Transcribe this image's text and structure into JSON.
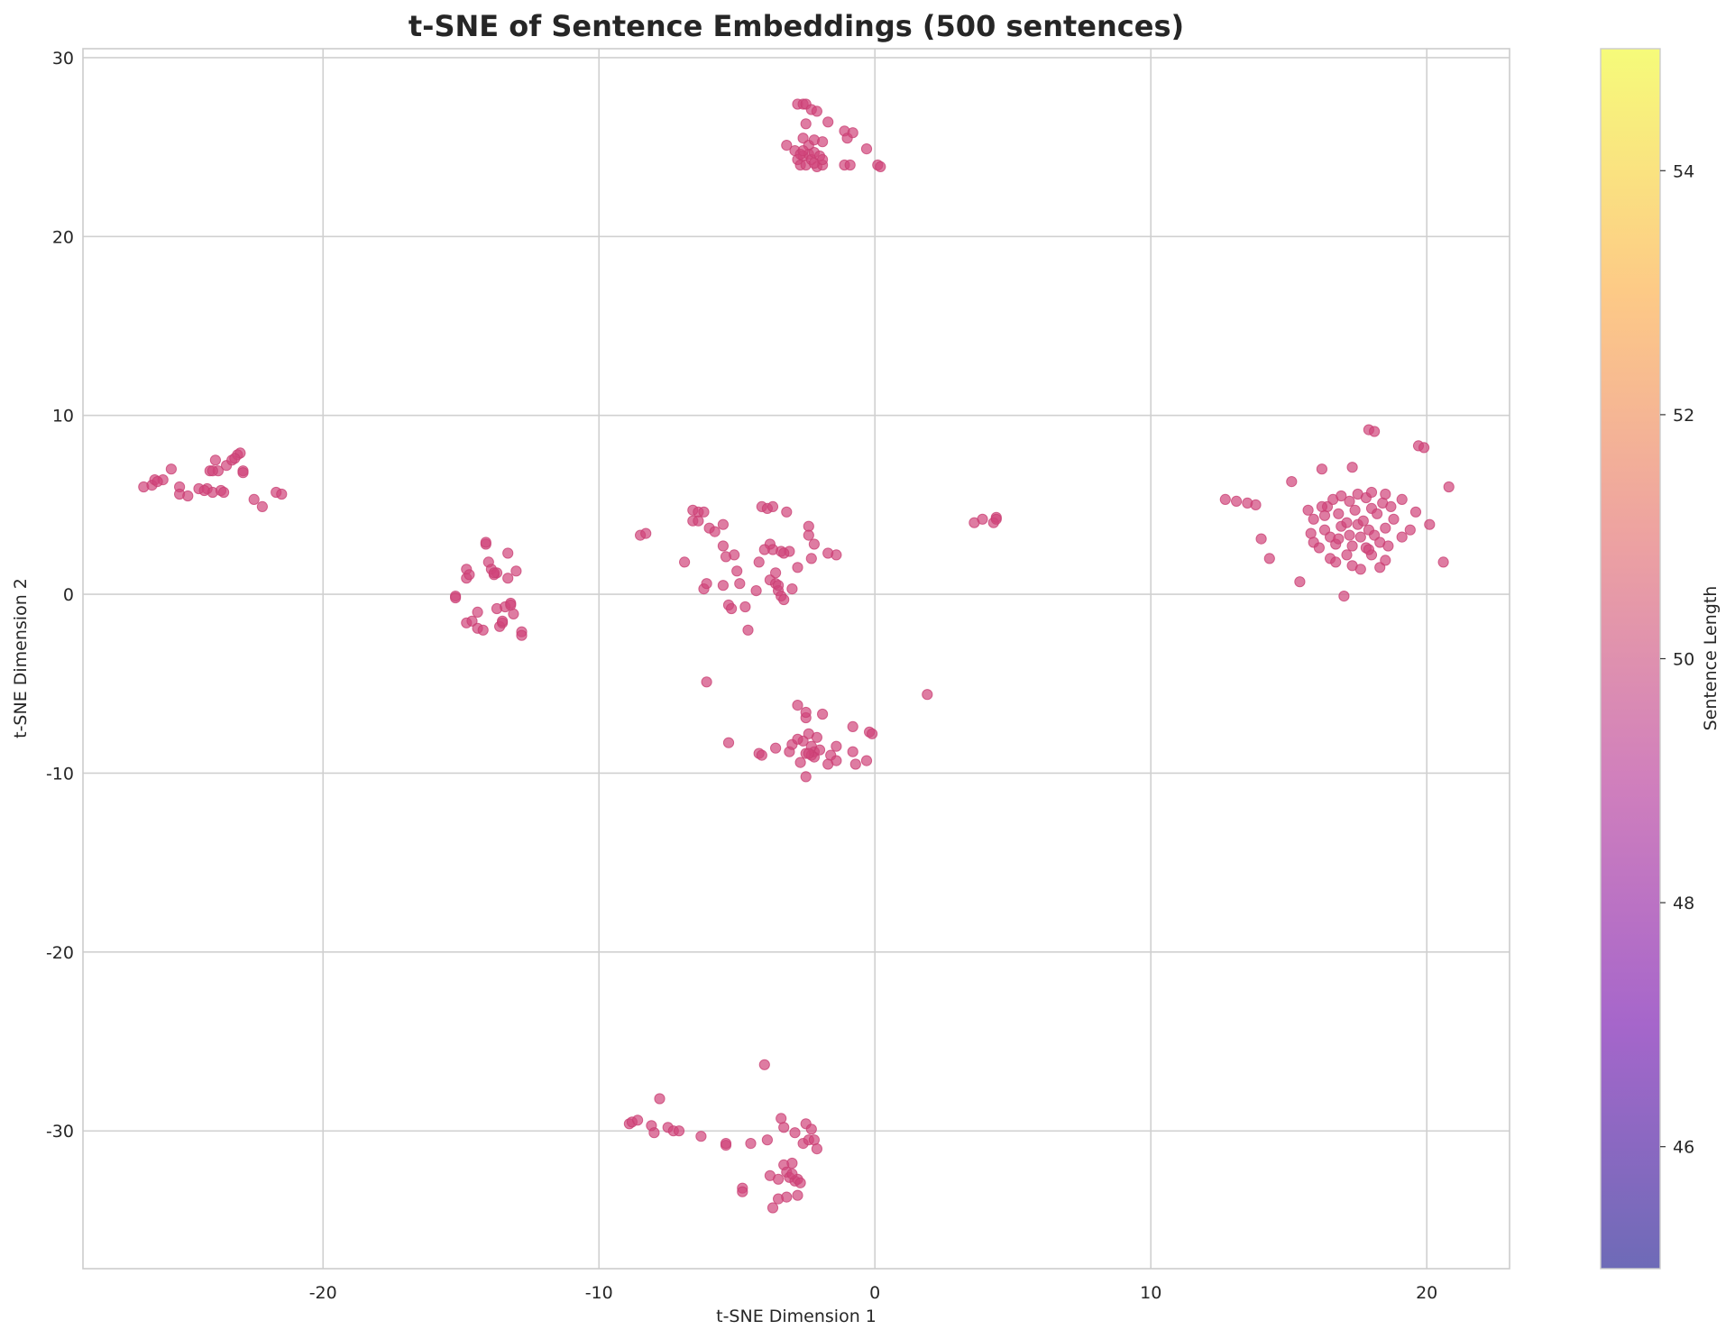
{
  "chart_data": {
    "type": "scatter",
    "title": "t-SNE of Sentence Embeddings (500 sentences)",
    "xlabel": "t-SNE Dimension 1",
    "ylabel": "t-SNE Dimension 2",
    "xlim": [
      -28.7,
      23.0
    ],
    "ylim": [
      -37.7,
      30.5
    ],
    "x_ticks": [
      -20,
      -10,
      0,
      10,
      20
    ],
    "y_ticks": [
      -30,
      -20,
      -10,
      0,
      10,
      20,
      30
    ],
    "x_tick_labels": [
      "-20",
      "-10",
      "0",
      "10",
      "20"
    ],
    "y_tick_labels": [
      "-30",
      "-20",
      "-10",
      "0",
      "10",
      "20",
      "30"
    ],
    "grid": true,
    "point_color": "#d0457a",
    "colorbar": {
      "label": "Sentence Length",
      "range": [
        45,
        55
      ],
      "ticks": [
        46,
        48,
        50,
        52,
        54
      ],
      "tick_labels": [
        "46",
        "48",
        "50",
        "52",
        "54"
      ],
      "colormap": "plasma",
      "colors": [
        "#0d0887",
        "#6a00a8",
        "#b12a90",
        "#e16462",
        "#fca636",
        "#f0f921"
      ]
    },
    "points": [
      [
        -26.5,
        6.0
      ],
      [
        -26.2,
        6.1
      ],
      [
        -26.1,
        6.4
      ],
      [
        -25.8,
        6.4
      ],
      [
        -25.5,
        7.0
      ],
      [
        -25.2,
        6.0
      ],
      [
        -25.2,
        5.6
      ],
      [
        -24.9,
        5.5
      ],
      [
        -24.5,
        5.9
      ],
      [
        -24.2,
        5.9
      ],
      [
        -24.1,
        6.9
      ],
      [
        -24.0,
        5.7
      ],
      [
        -23.9,
        7.5
      ],
      [
        -23.8,
        6.9
      ],
      [
        -23.7,
        5.8
      ],
      [
        -23.6,
        5.7
      ],
      [
        -23.5,
        7.2
      ],
      [
        -23.3,
        7.5
      ],
      [
        -23.1,
        7.8
      ],
      [
        -23.0,
        7.9
      ],
      [
        -22.9,
        6.9
      ],
      [
        -22.9,
        6.8
      ],
      [
        -22.5,
        5.3
      ],
      [
        -22.2,
        4.9
      ],
      [
        -21.7,
        5.7
      ],
      [
        -21.5,
        5.6
      ],
      [
        -24.3,
        5.8
      ],
      [
        -24.0,
        6.9
      ],
      [
        -23.2,
        7.6
      ],
      [
        -26.0,
        6.3
      ],
      [
        -15.2,
        -0.1
      ],
      [
        -15.2,
        -0.2
      ],
      [
        -14.8,
        1.4
      ],
      [
        -14.8,
        0.9
      ],
      [
        -14.7,
        1.1
      ],
      [
        -14.8,
        -1.6
      ],
      [
        -14.6,
        -1.5
      ],
      [
        -14.4,
        -1.0
      ],
      [
        -14.4,
        -1.9
      ],
      [
        -14.2,
        -2.0
      ],
      [
        -14.1,
        2.8
      ],
      [
        -14.1,
        2.9
      ],
      [
        -14.0,
        1.8
      ],
      [
        -13.9,
        1.4
      ],
      [
        -13.8,
        1.1
      ],
      [
        -13.7,
        1.2
      ],
      [
        -13.7,
        -0.8
      ],
      [
        -13.6,
        -1.8
      ],
      [
        -13.5,
        -1.6
      ],
      [
        -13.4,
        -0.7
      ],
      [
        -13.3,
        2.3
      ],
      [
        -13.3,
        0.9
      ],
      [
        -13.2,
        -0.5
      ],
      [
        -13.1,
        -1.1
      ],
      [
        -13.0,
        1.3
      ],
      [
        -12.8,
        -2.1
      ],
      [
        -12.8,
        -2.3
      ],
      [
        -13.5,
        -1.5
      ],
      [
        -13.2,
        -0.6
      ],
      [
        -13.8,
        1.2
      ],
      [
        -8.5,
        3.3
      ],
      [
        -8.3,
        3.4
      ],
      [
        -6.9,
        1.8
      ],
      [
        -6.6,
        4.7
      ],
      [
        -6.6,
        4.1
      ],
      [
        -6.4,
        4.6
      ],
      [
        -6.4,
        4.1
      ],
      [
        -6.2,
        4.6
      ],
      [
        -6.2,
        0.3
      ],
      [
        -6.1,
        0.6
      ],
      [
        -6.0,
        3.7
      ],
      [
        -5.5,
        2.7
      ],
      [
        -5.5,
        3.9
      ],
      [
        -5.4,
        2.1
      ],
      [
        -5.3,
        -0.6
      ],
      [
        -5.5,
        0.5
      ],
      [
        -5.2,
        -0.8
      ],
      [
        -5.1,
        2.2
      ],
      [
        -5.0,
        1.3
      ],
      [
        -4.9,
        0.6
      ],
      [
        -4.7,
        -0.7
      ],
      [
        -4.6,
        -2.0
      ],
      [
        -4.3,
        0.2
      ],
      [
        -4.2,
        1.8
      ],
      [
        -4.1,
        4.9
      ],
      [
        -3.9,
        4.8
      ],
      [
        -3.8,
        0.8
      ],
      [
        -3.8,
        2.8
      ],
      [
        -3.7,
        2.5
      ],
      [
        -3.6,
        0.6
      ],
      [
        -3.6,
        1.2
      ],
      [
        -3.5,
        0.2
      ],
      [
        -3.4,
        -0.1
      ],
      [
        -3.4,
        2.4
      ],
      [
        -3.3,
        -0.3
      ],
      [
        -3.2,
        4.6
      ],
      [
        -3.1,
        2.4
      ],
      [
        -3.0,
        0.3
      ],
      [
        -2.8,
        1.5
      ],
      [
        -2.4,
        3.8
      ],
      [
        -2.4,
        3.3
      ],
      [
        -2.3,
        2.0
      ],
      [
        -2.2,
        2.8
      ],
      [
        -1.7,
        2.3
      ],
      [
        -1.4,
        2.2
      ],
      [
        -3.7,
        4.9
      ],
      [
        -3.5,
        0.5
      ],
      [
        -4.0,
        2.5
      ],
      [
        -5.8,
        3.5
      ],
      [
        -3.3,
        2.3
      ],
      [
        -6.1,
        -4.9
      ],
      [
        1.9,
        -5.6
      ],
      [
        -5.3,
        -8.3
      ],
      [
        -4.2,
        -8.9
      ],
      [
        -4.1,
        -9.0
      ],
      [
        -3.6,
        -8.6
      ],
      [
        -3.1,
        -8.8
      ],
      [
        -3.0,
        -8.4
      ],
      [
        -2.8,
        -6.2
      ],
      [
        -2.7,
        -9.4
      ],
      [
        -2.6,
        -8.2
      ],
      [
        -2.5,
        -6.9
      ],
      [
        -2.5,
        -6.6
      ],
      [
        -2.5,
        -8.9
      ],
      [
        -2.5,
        -10.2
      ],
      [
        -2.4,
        -7.8
      ],
      [
        -2.3,
        -9.0
      ],
      [
        -2.2,
        -8.8
      ],
      [
        -2.2,
        -9.1
      ],
      [
        -2.1,
        -8.0
      ],
      [
        -2.0,
        -8.7
      ],
      [
        -1.9,
        -6.7
      ],
      [
        -1.7,
        -9.5
      ],
      [
        -1.6,
        -9.0
      ],
      [
        -1.4,
        -8.5
      ],
      [
        -1.4,
        -9.3
      ],
      [
        -0.8,
        -8.8
      ],
      [
        -0.8,
        -7.4
      ],
      [
        -0.7,
        -9.5
      ],
      [
        -0.3,
        -9.3
      ],
      [
        -0.2,
        -7.7
      ],
      [
        -0.1,
        -7.8
      ],
      [
        -2.3,
        -8.5
      ],
      [
        -2.8,
        -8.1
      ],
      [
        -2.4,
        -8.9
      ],
      [
        -2.8,
        27.4
      ],
      [
        -2.6,
        27.4
      ],
      [
        -2.5,
        27.4
      ],
      [
        -2.3,
        27.1
      ],
      [
        -2.1,
        27.0
      ],
      [
        -2.5,
        26.3
      ],
      [
        -1.7,
        26.4
      ],
      [
        -3.2,
        25.1
      ],
      [
        -2.9,
        24.8
      ],
      [
        -2.6,
        25.5
      ],
      [
        -2.4,
        25.1
      ],
      [
        -2.2,
        25.4
      ],
      [
        -1.9,
        25.3
      ],
      [
        -1.1,
        25.9
      ],
      [
        -1.0,
        25.5
      ],
      [
        -0.8,
        25.8
      ],
      [
        -0.3,
        24.9
      ],
      [
        -2.8,
        24.3
      ],
      [
        -2.7,
        24.0
      ],
      [
        -2.6,
        24.5
      ],
      [
        -2.5,
        24.0
      ],
      [
        -2.4,
        24.6
      ],
      [
        -2.3,
        24.3
      ],
      [
        -2.2,
        24.7
      ],
      [
        -2.1,
        23.9
      ],
      [
        -2.0,
        24.5
      ],
      [
        -1.9,
        24.0
      ],
      [
        -1.1,
        24.0
      ],
      [
        -0.9,
        24.0
      ],
      [
        0.1,
        24.0
      ],
      [
        0.2,
        23.9
      ],
      [
        -2.7,
        24.6
      ],
      [
        -2.2,
        24.1
      ],
      [
        -1.9,
        24.3
      ],
      [
        -2.6,
        24.8
      ],
      [
        3.6,
        4.0
      ],
      [
        3.9,
        4.2
      ],
      [
        4.3,
        4.0
      ],
      [
        4.4,
        4.3
      ],
      [
        4.4,
        4.2
      ],
      [
        12.7,
        5.3
      ],
      [
        13.1,
        5.2
      ],
      [
        13.5,
        5.1
      ],
      [
        13.8,
        5.0
      ],
      [
        14.0,
        3.1
      ],
      [
        14.3,
        2.0
      ],
      [
        15.1,
        6.3
      ],
      [
        15.4,
        0.7
      ],
      [
        15.7,
        4.7
      ],
      [
        15.8,
        3.4
      ],
      [
        15.9,
        2.9
      ],
      [
        15.9,
        4.2
      ],
      [
        16.1,
        2.6
      ],
      [
        16.2,
        7.0
      ],
      [
        16.3,
        3.6
      ],
      [
        16.3,
        4.4
      ],
      [
        16.4,
        4.9
      ],
      [
        16.5,
        2.0
      ],
      [
        16.5,
        3.2
      ],
      [
        16.6,
        5.3
      ],
      [
        16.7,
        1.8
      ],
      [
        16.7,
        2.8
      ],
      [
        16.8,
        4.5
      ],
      [
        16.9,
        3.8
      ],
      [
        16.9,
        5.5
      ],
      [
        17.0,
        -0.1
      ],
      [
        17.1,
        2.2
      ],
      [
        17.1,
        4.0
      ],
      [
        17.2,
        3.3
      ],
      [
        17.2,
        5.2
      ],
      [
        17.3,
        1.6
      ],
      [
        17.3,
        2.7
      ],
      [
        17.3,
        7.1
      ],
      [
        17.4,
        4.7
      ],
      [
        17.5,
        3.9
      ],
      [
        17.5,
        5.6
      ],
      [
        17.6,
        1.4
      ],
      [
        17.6,
        3.2
      ],
      [
        17.7,
        4.1
      ],
      [
        17.8,
        2.6
      ],
      [
        17.8,
        5.4
      ],
      [
        17.9,
        3.6
      ],
      [
        17.9,
        9.2
      ],
      [
        18.0,
        2.2
      ],
      [
        18.0,
        4.8
      ],
      [
        18.0,
        5.7
      ],
      [
        18.1,
        9.1
      ],
      [
        18.1,
        3.3
      ],
      [
        18.2,
        4.5
      ],
      [
        18.3,
        1.5
      ],
      [
        18.3,
        2.9
      ],
      [
        18.4,
        5.1
      ],
      [
        18.5,
        3.7
      ],
      [
        18.5,
        5.6
      ],
      [
        18.6,
        2.7
      ],
      [
        18.7,
        4.9
      ],
      [
        18.8,
        4.2
      ],
      [
        19.1,
        3.2
      ],
      [
        19.1,
        5.3
      ],
      [
        19.4,
        3.6
      ],
      [
        19.6,
        4.6
      ],
      [
        19.7,
        8.3
      ],
      [
        19.9,
        8.2
      ],
      [
        20.1,
        3.9
      ],
      [
        20.6,
        1.8
      ],
      [
        20.8,
        6.0
      ],
      [
        18.5,
        1.9
      ],
      [
        16.8,
        3.1
      ],
      [
        17.9,
        2.5
      ],
      [
        16.2,
        4.9
      ]
    ],
    "points2": [
      [
        -8.9,
        -29.6
      ],
      [
        -8.8,
        -29.5
      ],
      [
        -8.6,
        -29.4
      ],
      [
        -8.1,
        -29.7
      ],
      [
        -8.0,
        -30.1
      ],
      [
        -7.8,
        -28.2
      ],
      [
        -7.5,
        -29.8
      ],
      [
        -7.3,
        -30.0
      ],
      [
        -7.1,
        -30.0
      ],
      [
        -6.3,
        -30.3
      ],
      [
        -5.4,
        -30.8
      ],
      [
        -5.4,
        -30.7
      ],
      [
        -4.8,
        -33.2
      ],
      [
        -4.8,
        -33.4
      ],
      [
        -4.5,
        -30.7
      ],
      [
        -4.0,
        -26.3
      ],
      [
        -3.9,
        -30.5
      ],
      [
        -3.8,
        -32.5
      ],
      [
        -3.7,
        -34.3
      ],
      [
        -3.5,
        -32.7
      ],
      [
        -3.5,
        -33.8
      ],
      [
        -3.4,
        -29.3
      ],
      [
        -3.3,
        -29.8
      ],
      [
        -3.3,
        -31.9
      ],
      [
        -3.2,
        -32.3
      ],
      [
        -3.2,
        -33.7
      ],
      [
        -3.1,
        -32.6
      ],
      [
        -3.0,
        -31.8
      ],
      [
        -2.9,
        -32.8
      ],
      [
        -2.9,
        -30.1
      ],
      [
        -2.8,
        -32.7
      ],
      [
        -2.8,
        -33.6
      ],
      [
        -2.7,
        -32.9
      ],
      [
        -2.6,
        -30.7
      ],
      [
        -2.5,
        -29.6
      ],
      [
        -2.4,
        -30.5
      ],
      [
        -2.3,
        -29.9
      ],
      [
        -2.2,
        -30.5
      ],
      [
        -2.1,
        -31.0
      ],
      [
        -3.0,
        -32.4
      ]
    ]
  }
}
